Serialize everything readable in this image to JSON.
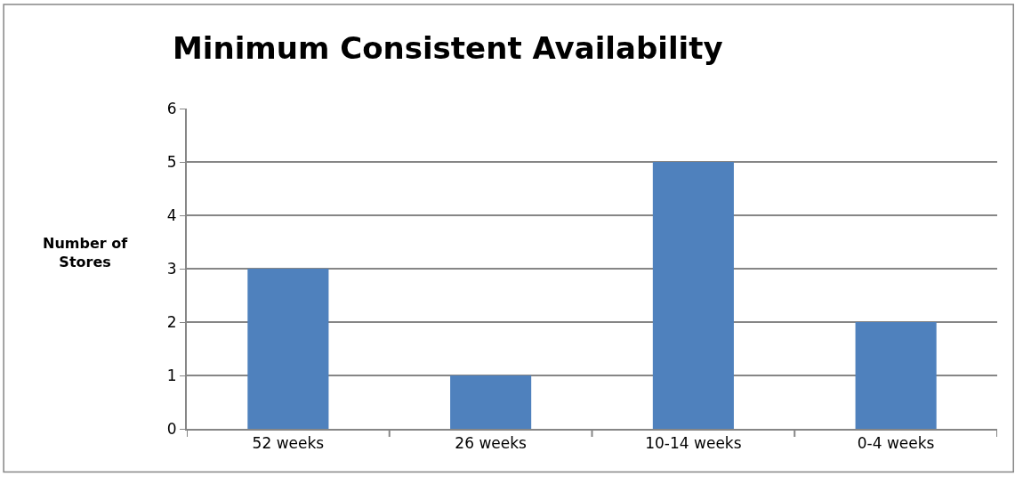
{
  "chart_data": {
    "type": "bar",
    "title": "Minimum Consistent Availability",
    "ylabel": "Number of Stores",
    "categories": [
      "52 weeks",
      "26 weeks",
      "10-14 weeks",
      "0-4 weeks"
    ],
    "values": [
      3,
      1,
      5,
      2
    ],
    "color": "#4f81bd",
    "ylim": [
      0,
      6
    ],
    "yticks": [
      0,
      1,
      2,
      3,
      4,
      5,
      6
    ],
    "grid": "y",
    "legend": false
  }
}
